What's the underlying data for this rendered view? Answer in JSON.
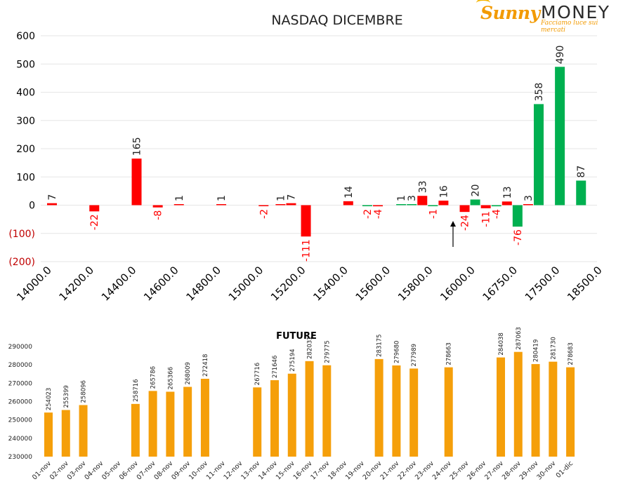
{
  "logo": {
    "brand_part1": "Sunny",
    "brand_part2": "MONEY",
    "tagline": "Facciamo luce sui mercati"
  },
  "colors": {
    "positive": "#00b050",
    "negative": "#ff0000",
    "future_bar": "#f59f0a",
    "axis_text": "#000000",
    "negative_tick": "#c00000",
    "grid": "#e6e6e6"
  },
  "chart_data": [
    {
      "type": "bar",
      "title": "NASDAQ DICEMBRE",
      "ylim": [
        -200,
        600
      ],
      "yticks": [
        {
          "value": 600,
          "label": "600"
        },
        {
          "value": 500,
          "label": "500"
        },
        {
          "value": 400,
          "label": "400"
        },
        {
          "value": 300,
          "label": "300"
        },
        {
          "value": 200,
          "label": "200"
        },
        {
          "value": 100,
          "label": "100"
        },
        {
          "value": 0,
          "label": "0"
        },
        {
          "value": -100,
          "label": "(100)"
        },
        {
          "value": -200,
          "label": "(200)"
        }
      ],
      "xtick_labels": [
        "14000.0",
        "14200.0",
        "14400.0",
        "14600.0",
        "14800.0",
        "15000.0",
        "15200.0",
        "15400.0",
        "15600.0",
        "15800.0",
        "16000.0",
        "16750.0",
        "17500.0",
        "18500.0"
      ],
      "grid": true,
      "legend": false,
      "arrow_annotation": "at 16000 strike, pointing up",
      "bars": [
        {
          "slot": 0,
          "value": 7,
          "label": "7",
          "color": "negative"
        },
        {
          "slot": 2,
          "value": -22,
          "label": "-22",
          "color": "negative"
        },
        {
          "slot": 4,
          "value": 165,
          "label": "165",
          "color": "negative"
        },
        {
          "slot": 5,
          "value": -8,
          "label": "-8",
          "color": "negative"
        },
        {
          "slot": 6,
          "value": 1,
          "label": "1",
          "color": "negative"
        },
        {
          "slot": 8,
          "value": 1,
          "label": "1",
          "color": "negative"
        },
        {
          "slot": 10,
          "value": -2,
          "label": "-2",
          "color": "negative"
        },
        {
          "slot": 10.8,
          "value": 1,
          "label": "1",
          "color": "negative"
        },
        {
          "slot": 11.3,
          "value": 7,
          "label": "7",
          "color": "negative"
        },
        {
          "slot": 12,
          "value": -111,
          "label": "-111",
          "color": "negative"
        },
        {
          "slot": 14,
          "value": 14,
          "label": "14",
          "color": "negative"
        },
        {
          "slot": 14.9,
          "value": -2,
          "label": "-2",
          "color": "positive"
        },
        {
          "slot": 15.4,
          "value": -4,
          "label": "-4",
          "color": "negative"
        },
        {
          "slot": 16.5,
          "value": 1,
          "label": "1",
          "color": "positive"
        },
        {
          "slot": 17,
          "value": 3,
          "label": "3",
          "color": "positive"
        },
        {
          "slot": 17.5,
          "value": 33,
          "label": "33",
          "color": "negative"
        },
        {
          "slot": 18,
          "value": -1,
          "label": "-1",
          "color": "positive"
        },
        {
          "slot": 18.5,
          "value": 16,
          "label": "16",
          "color": "negative"
        },
        {
          "slot": 19.5,
          "value": -24,
          "label": "-24",
          "color": "negative"
        },
        {
          "slot": 20,
          "value": 20,
          "label": "20",
          "color": "positive"
        },
        {
          "slot": 20.5,
          "value": -11,
          "label": "-11",
          "color": "negative"
        },
        {
          "slot": 21,
          "value": -4,
          "label": "-4",
          "color": "positive"
        },
        {
          "slot": 21.5,
          "value": 13,
          "label": "13",
          "color": "negative"
        },
        {
          "slot": 22,
          "value": -76,
          "label": "-76",
          "color": "positive"
        },
        {
          "slot": 22.5,
          "value": 3,
          "label": "3",
          "color": "negative"
        },
        {
          "slot": 23,
          "value": 358,
          "label": "358",
          "color": "positive"
        },
        {
          "slot": 24,
          "value": 490,
          "label": "490",
          "color": "positive"
        },
        {
          "slot": 25,
          "value": 87,
          "label": "87",
          "color": "positive"
        }
      ]
    },
    {
      "type": "bar",
      "title": "FUTURE",
      "ylim": [
        230000,
        290000
      ],
      "yticks": [
        230000,
        240000,
        250000,
        260000,
        270000,
        280000,
        290000
      ],
      "categories": [
        "01-nov",
        "02-nov",
        "03-nov",
        "04-nov",
        "05-nov",
        "06-nov",
        "07-nov",
        "08-nov",
        "09-nov",
        "10-nov",
        "11-nov",
        "12-nov",
        "13-nov",
        "14-nov",
        "15-nov",
        "16-nov",
        "17-nov",
        "18-nov",
        "19-nov",
        "20-nov",
        "21-nov",
        "22-nov",
        "23-nov",
        "24-nov",
        "25-nov",
        "26-nov",
        "27-nov",
        "28-nov",
        "29-nov",
        "30-nov",
        "01-dic"
      ],
      "values": [
        254023,
        255399,
        258096,
        null,
        null,
        258716,
        265786,
        265366,
        268009,
        272418,
        null,
        null,
        267716,
        271646,
        275194,
        282031,
        279775,
        null,
        null,
        283175,
        279680,
        277989,
        null,
        278663,
        null,
        null,
        284038,
        287063,
        280419,
        281730,
        278683
      ],
      "labels": [
        "254023",
        "255399",
        "258096",
        "",
        "",
        "258716",
        "265786",
        "265366",
        "268009",
        "272418",
        "",
        "",
        "267716",
        "271646",
        "275194",
        "282031",
        "279775",
        "",
        "",
        "283175",
        "279680",
        "277989",
        "",
        "278663",
        "",
        "",
        "284038",
        "287063",
        "280419",
        "281730",
        "278683"
      ],
      "grid": false,
      "legend": false
    }
  ]
}
